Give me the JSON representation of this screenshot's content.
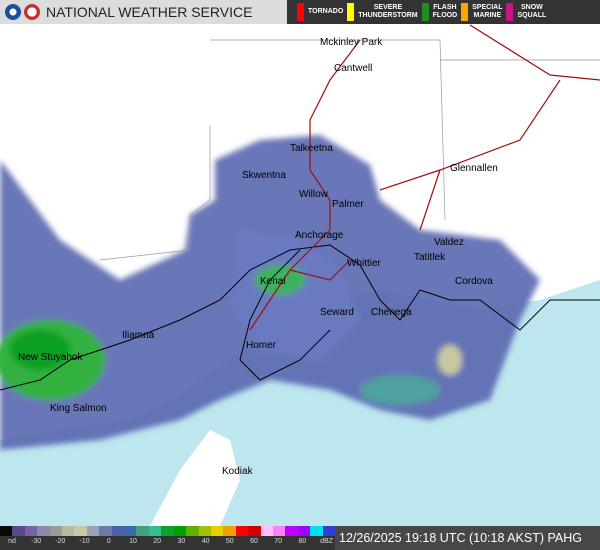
{
  "header": {
    "title": "NATIONAL WEATHER SERVICE",
    "logos": [
      "noaa-logo",
      "nws-logo"
    ]
  },
  "alerts": [
    {
      "label": "TORNADO",
      "color": "#ff0000"
    },
    {
      "label": "SEVERE\nTHUNDERSTORM",
      "color": "#ffff00"
    },
    {
      "label": "FLASH\nFLOOD",
      "color": "#228b22"
    },
    {
      "label": "SPECIAL\nMARINE",
      "color": "#ffa500"
    },
    {
      "label": "SNOW\nSQUALL",
      "color": "#c71585"
    }
  ],
  "cities": [
    "Mckinley Park",
    "Cantwell",
    "Talkeetna",
    "Skwentna",
    "Glennallen",
    "Willow",
    "Palmer",
    "Anchorage",
    "Valdez",
    "Whittier",
    "Tatitlek",
    "Kenai",
    "Cordova",
    "Seward",
    "Chenega",
    "Iliamna",
    "New Stuyahok",
    "Homer",
    "King Salmon",
    "Kodiak"
  ],
  "legend": {
    "ticks": [
      "nd",
      "-30",
      "-20",
      "-10",
      "0",
      "10",
      "20",
      "30",
      "40",
      "50",
      "60",
      "70",
      "80",
      "dBZ"
    ],
    "colors": [
      "#0a0a0a",
      "#5a4a8a",
      "#7a62a2",
      "#8e88a8",
      "#9a9a9a",
      "#b8b8a0",
      "#c8c8a8",
      "#9aa0b8",
      "#6d7aa8",
      "#4a62a8",
      "#3a6aa8",
      "#40a080",
      "#30c090",
      "#10a030",
      "#00a000",
      "#60b000",
      "#a0c000",
      "#e8d000",
      "#f0a000",
      "#ff0000",
      "#d00000",
      "#ffc0ff",
      "#ff80ff",
      "#c000ff",
      "#a000ff",
      "#00e0f0",
      "#3040d0"
    ]
  },
  "timestamp": "12/26/2025 19:18 UTC (10:18 AKST) PAHG",
  "colors": {
    "ocean": "#bde6ee",
    "land": "#ffffff",
    "highway": "#a01010",
    "radar_light": "#5a66b0",
    "radar_green": "#30b040"
  }
}
